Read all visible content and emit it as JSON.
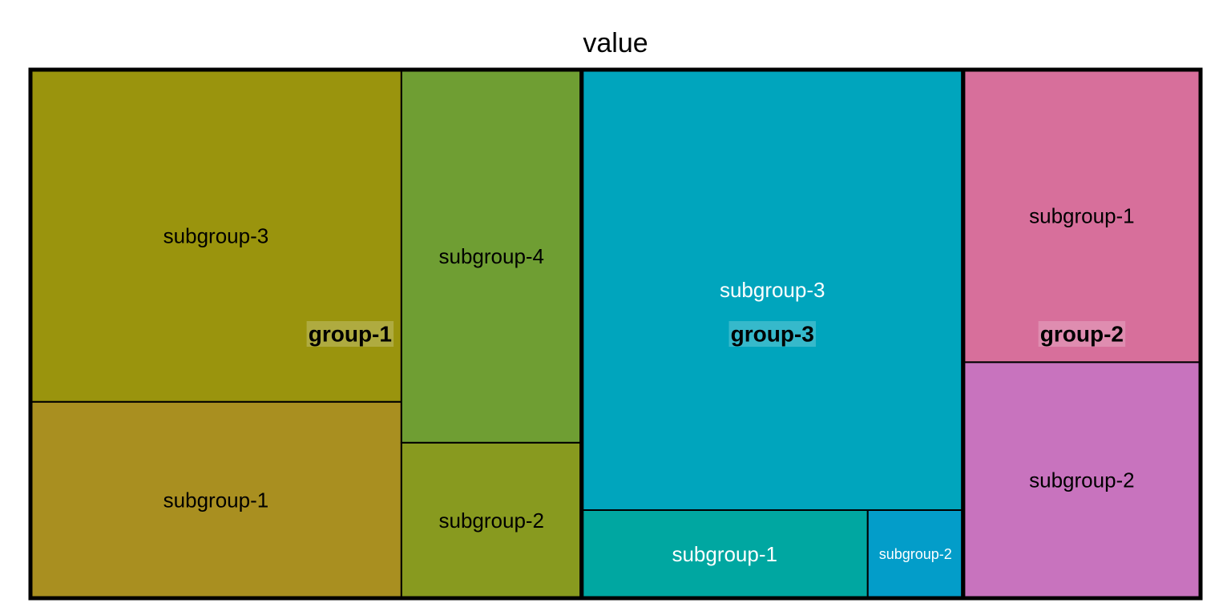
{
  "chart_data": {
    "type": "treemap",
    "title": "value",
    "groups": [
      {
        "name": "group-1",
        "subgroups": [
          {
            "name": "subgroup-3",
            "value": 22,
            "color": "#9a940d"
          },
          {
            "name": "subgroup-1",
            "value": 13,
            "color": "#a98f20"
          },
          {
            "name": "subgroup-4",
            "value": 12,
            "color": "#6f9e33"
          },
          {
            "name": "subgroup-2",
            "value": 5,
            "color": "#889a1f"
          }
        ]
      },
      {
        "name": "group-3",
        "subgroups": [
          {
            "name": "subgroup-3",
            "value": 30,
            "color": "#00a5bd"
          },
          {
            "name": "subgroup-1",
            "value": 4.5,
            "color": "#00a7a1"
          },
          {
            "name": "subgroup-2",
            "value": 1.5,
            "color": "#039dc9"
          }
        ]
      },
      {
        "name": "group-2",
        "subgroups": [
          {
            "name": "subgroup-1",
            "value": 12.4,
            "color": "#d76f9b"
          },
          {
            "name": "subgroup-2",
            "value": 10,
            "color": "#c873be"
          }
        ]
      }
    ]
  }
}
